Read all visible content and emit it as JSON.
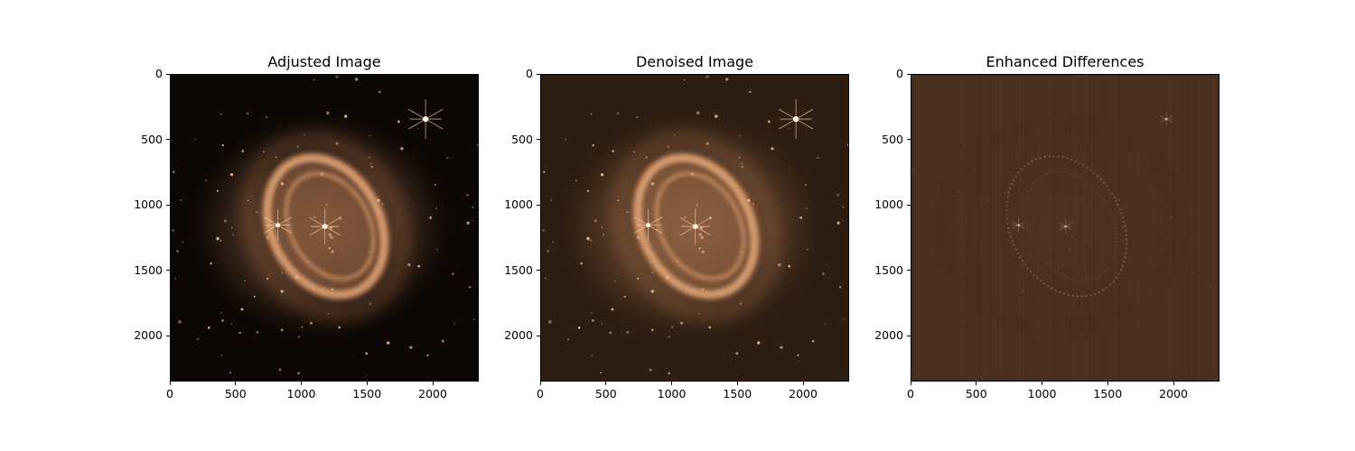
{
  "panels": [
    {
      "id": "adjusted",
      "title": "Adjusted Image",
      "variant": "adjusted",
      "x_ticks": [
        "0",
        "500",
        "1000",
        "1500",
        "2000"
      ],
      "y_ticks": [
        "0",
        "500",
        "1000",
        "1500",
        "2000"
      ],
      "background_color": "#0d0805",
      "nebula_color": "#d38e62"
    },
    {
      "id": "denoised",
      "title": "Denoised Image",
      "variant": "denoised",
      "x_ticks": [
        "0",
        "500",
        "1000",
        "1500",
        "2000"
      ],
      "y_ticks": [
        "0",
        "500",
        "1000",
        "1500",
        "2000"
      ],
      "background_color": "#2e1e12",
      "nebula_color": "#c98a60"
    },
    {
      "id": "differences",
      "title": "Enhanced Differences",
      "variant": "differences",
      "x_ticks": [
        "0",
        "500",
        "1000",
        "1500",
        "2000"
      ],
      "y_ticks": [
        "0",
        "500",
        "1000",
        "1500",
        "2000"
      ],
      "background_color": "#4a3020",
      "nebula_color": "#6a4a33"
    }
  ]
}
